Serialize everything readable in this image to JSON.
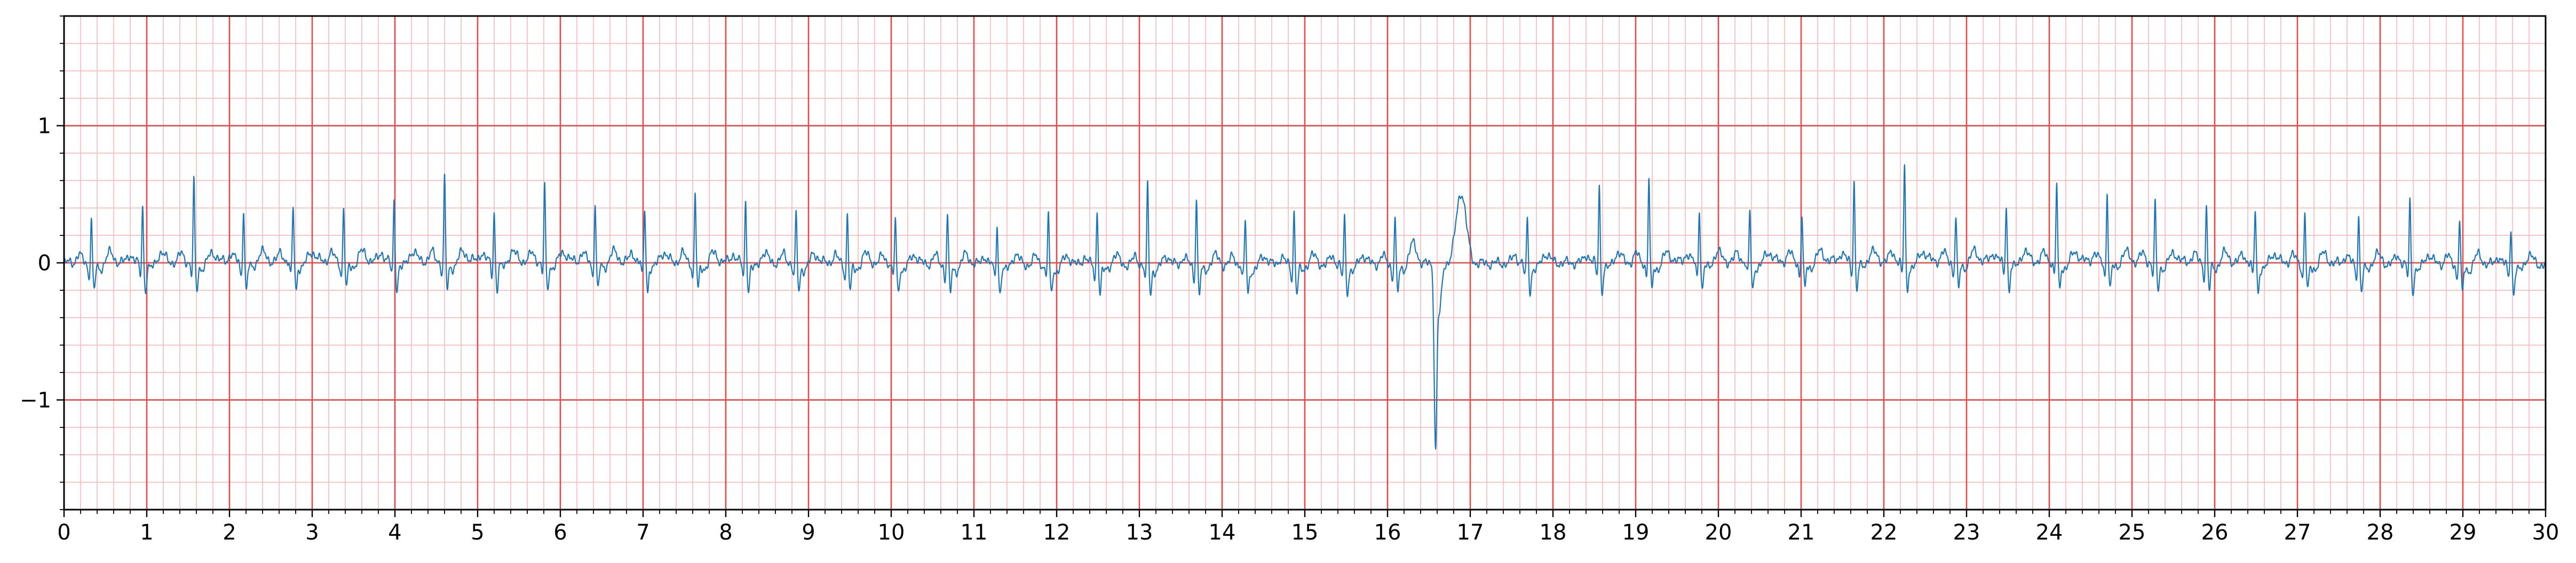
{
  "chart_data": {
    "type": "line",
    "title": "",
    "xlabel": "",
    "ylabel": "",
    "xlim": [
      0,
      30
    ],
    "ylim": [
      -1.8,
      1.8
    ],
    "x_ticks": [
      0,
      1,
      2,
      3,
      4,
      5,
      6,
      7,
      8,
      9,
      10,
      11,
      12,
      13,
      14,
      15,
      16,
      17,
      18,
      19,
      20,
      21,
      22,
      23,
      24,
      25,
      26,
      27,
      28,
      29,
      30
    ],
    "y_ticks": [
      -1,
      0,
      1
    ],
    "y_tick_labels": [
      "−1",
      "0",
      "1"
    ],
    "grid": {
      "major": true,
      "major_x_step": 1,
      "major_y_step": 1,
      "minor": true,
      "minor_x_step": 0.2,
      "minor_y_step": 0.2,
      "major_color": "#e84a4a",
      "minor_color": "#f7b9b9"
    },
    "line_color": "#1f77b4",
    "series": [
      {
        "beats": [
          [
            0.33,
            0.33
          ],
          [
            0.95,
            0.42
          ],
          [
            1.57,
            0.6
          ],
          [
            2.17,
            0.4
          ],
          [
            2.77,
            0.4
          ],
          [
            3.38,
            0.4
          ],
          [
            3.99,
            0.45
          ],
          [
            4.6,
            0.62
          ],
          [
            5.2,
            0.38
          ],
          [
            5.81,
            0.56
          ],
          [
            6.42,
            0.43
          ],
          [
            7.02,
            0.4
          ],
          [
            7.63,
            0.52
          ],
          [
            8.24,
            0.47
          ],
          [
            8.85,
            0.35
          ],
          [
            9.47,
            0.37
          ],
          [
            10.05,
            0.33
          ],
          [
            10.68,
            0.37
          ],
          [
            11.28,
            0.3
          ],
          [
            11.9,
            0.38
          ],
          [
            12.49,
            0.42
          ],
          [
            13.1,
            0.6
          ],
          [
            13.69,
            0.52
          ],
          [
            14.28,
            0.33
          ],
          [
            14.87,
            0.4
          ],
          [
            15.48,
            0.35
          ],
          [
            16.09,
            0.36
          ],
          [
            17.69,
            0.33
          ],
          [
            18.56,
            0.58
          ],
          [
            19.16,
            0.63
          ],
          [
            19.77,
            0.4
          ],
          [
            20.38,
            0.37
          ],
          [
            21.01,
            0.35
          ],
          [
            21.64,
            0.62
          ],
          [
            22.25,
            0.72
          ],
          [
            22.87,
            0.33
          ],
          [
            23.48,
            0.44
          ],
          [
            24.09,
            0.58
          ],
          [
            24.7,
            0.53
          ],
          [
            25.28,
            0.43
          ],
          [
            25.9,
            0.42
          ],
          [
            26.49,
            0.4
          ],
          [
            27.09,
            0.38
          ],
          [
            27.74,
            0.36
          ],
          [
            28.36,
            0.47
          ],
          [
            28.96,
            0.35
          ],
          [
            29.58,
            0.28
          ]
        ],
        "ectopic_beat": {
          "x": 16.58,
          "min": -1.26,
          "t_wave_peak": 0.52
        }
      }
    ]
  }
}
